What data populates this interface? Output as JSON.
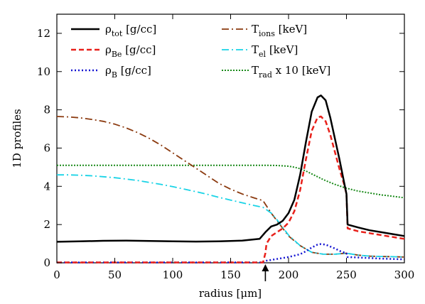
{
  "chart_data": {
    "type": "line",
    "xlabel": "radius [μm]",
    "ylabel": "1D profiles",
    "xlim": [
      0,
      300
    ],
    "ylim": [
      0,
      13
    ],
    "x_ticks": [
      "0",
      "50",
      "100",
      "150",
      "200",
      "250",
      "300"
    ],
    "y_ticks": [
      "0",
      "2",
      "4",
      "6",
      "8",
      "10",
      "12"
    ],
    "grid": false,
    "legend_position": "top",
    "arrow_marker_x": 180,
    "series": [
      {
        "name": "ρ",
        "subscript": "tot",
        "unit": " [g/cc]",
        "color": "#000000",
        "dash": "",
        "width": 2.5,
        "x": [
          0,
          20,
          40,
          60,
          80,
          100,
          120,
          140,
          160,
          175,
          180,
          185,
          190,
          195,
          200,
          205,
          210,
          215,
          220,
          225,
          228,
          232,
          236,
          240,
          244,
          248,
          250,
          251,
          260,
          270,
          280,
          290,
          300
        ],
        "y": [
          1.1,
          1.12,
          1.15,
          1.16,
          1.14,
          1.12,
          1.11,
          1.12,
          1.16,
          1.25,
          1.6,
          1.9,
          2.0,
          2.2,
          2.6,
          3.3,
          4.6,
          6.3,
          7.9,
          8.65,
          8.75,
          8.5,
          7.6,
          6.5,
          5.4,
          4.2,
          3.6,
          2.0,
          1.85,
          1.7,
          1.6,
          1.5,
          1.4
        ]
      },
      {
        "name": "ρ",
        "subscript": "Be",
        "unit": " [g/cc]",
        "color": "#e8201a",
        "dash": "7,4",
        "width": 2.5,
        "x": [
          0,
          50,
          100,
          150,
          178,
          180,
          181,
          185,
          190,
          195,
          200,
          205,
          210,
          215,
          220,
          225,
          228,
          232,
          236,
          240,
          244,
          248,
          250,
          251,
          260,
          270,
          280,
          290,
          300
        ],
        "y": [
          0.02,
          0.02,
          0.02,
          0.02,
          0.02,
          0.5,
          1.0,
          1.4,
          1.6,
          1.8,
          2.1,
          2.7,
          3.8,
          5.4,
          6.9,
          7.6,
          7.65,
          7.4,
          6.7,
          5.8,
          4.9,
          4.1,
          3.6,
          1.8,
          1.65,
          1.55,
          1.45,
          1.35,
          1.25
        ]
      },
      {
        "name": "ρ",
        "subscript": "B",
        "unit": " [g/cc]",
        "color": "#1414d2",
        "dash": "2,3",
        "width": 2.5,
        "x": [
          0,
          50,
          100,
          150,
          178,
          180,
          190,
          200,
          210,
          215,
          220,
          225,
          228,
          232,
          236,
          240,
          245,
          250,
          251,
          260,
          270,
          280,
          290,
          300
        ],
        "y": [
          0.02,
          0.02,
          0.02,
          0.02,
          0.02,
          0.1,
          0.2,
          0.3,
          0.45,
          0.6,
          0.8,
          0.95,
          0.98,
          0.95,
          0.85,
          0.75,
          0.6,
          0.5,
          0.3,
          0.28,
          0.25,
          0.22,
          0.2,
          0.18
        ]
      },
      {
        "name": "T",
        "subscript": "ions",
        "unit": " [keV]",
        "color": "#8b3a0f",
        "dash": "10,4,2,4",
        "width": 1.8,
        "x": [
          0,
          10,
          20,
          30,
          40,
          50,
          60,
          70,
          80,
          90,
          100,
          110,
          120,
          130,
          140,
          150,
          160,
          170,
          178,
          185,
          190,
          195,
          200,
          210,
          220,
          230,
          240,
          250,
          260,
          270,
          280,
          290,
          300
        ],
        "y": [
          7.65,
          7.63,
          7.58,
          7.5,
          7.4,
          7.25,
          7.05,
          6.8,
          6.5,
          6.15,
          5.75,
          5.35,
          4.95,
          4.55,
          4.15,
          3.85,
          3.6,
          3.4,
          3.25,
          2.6,
          2.2,
          1.8,
          1.4,
          0.9,
          0.55,
          0.45,
          0.45,
          0.5,
          0.4,
          0.35,
          0.33,
          0.32,
          0.3
        ]
      },
      {
        "name": "T",
        "subscript": "el",
        "unit": " [keV]",
        "color": "#19d3e6",
        "dash": "10,4,2,4",
        "width": 1.8,
        "x": [
          0,
          10,
          20,
          30,
          40,
          50,
          60,
          70,
          80,
          90,
          100,
          110,
          120,
          130,
          140,
          150,
          160,
          170,
          178,
          185,
          190,
          195,
          200,
          210,
          220,
          230,
          240,
          250,
          260,
          270,
          280,
          290,
          300
        ],
        "y": [
          4.6,
          4.6,
          4.58,
          4.55,
          4.5,
          4.45,
          4.38,
          4.3,
          4.2,
          4.1,
          3.98,
          3.85,
          3.72,
          3.58,
          3.42,
          3.28,
          3.14,
          3.0,
          2.9,
          2.6,
          2.25,
          1.85,
          1.45,
          0.9,
          0.55,
          0.45,
          0.45,
          0.5,
          0.4,
          0.35,
          0.33,
          0.32,
          0.3
        ]
      },
      {
        "name": "T",
        "subscript": "rad",
        "unit": " x 10 [keV]",
        "color": "#1a8a1a",
        "dash": "2,2",
        "width": 2.0,
        "x": [
          0,
          50,
          100,
          150,
          180,
          190,
          200,
          205,
          210,
          215,
          220,
          225,
          230,
          240,
          250,
          260,
          270,
          280,
          290,
          300
        ],
        "y": [
          5.1,
          5.1,
          5.1,
          5.1,
          5.1,
          5.09,
          5.05,
          5.0,
          4.92,
          4.8,
          4.65,
          4.5,
          4.35,
          4.1,
          3.9,
          3.75,
          3.65,
          3.55,
          3.48,
          3.4
        ]
      }
    ]
  }
}
